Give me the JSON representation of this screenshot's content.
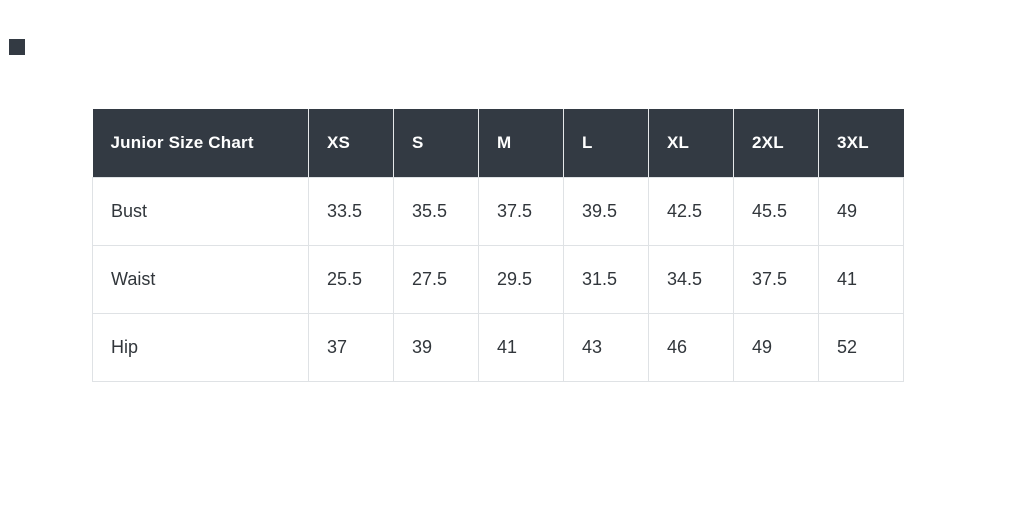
{
  "page": {
    "background": "#ffffff"
  },
  "logo": {
    "color": "#333a43"
  },
  "chart_data": {
    "type": "table",
    "title": "Junior Size Chart",
    "columns": [
      "XS",
      "S",
      "M",
      "L",
      "XL",
      "2XL",
      "3XL"
    ],
    "rows": [
      {
        "label": "Bust",
        "values": [
          "33.5",
          "35.5",
          "37.5",
          "39.5",
          "42.5",
          "45.5",
          "49"
        ]
      },
      {
        "label": "Waist",
        "values": [
          "25.5",
          "27.5",
          "29.5",
          "31.5",
          "34.5",
          "37.5",
          "41"
        ]
      },
      {
        "label": "Hip",
        "values": [
          "37",
          "39",
          "41",
          "43",
          "46",
          "49",
          "52"
        ]
      }
    ],
    "layout": {
      "header_bg": "#333a43",
      "header_text_color": "#ffffff",
      "body_text_color": "#31363b",
      "border_color": "#dfe2e5",
      "grid": "on"
    }
  }
}
